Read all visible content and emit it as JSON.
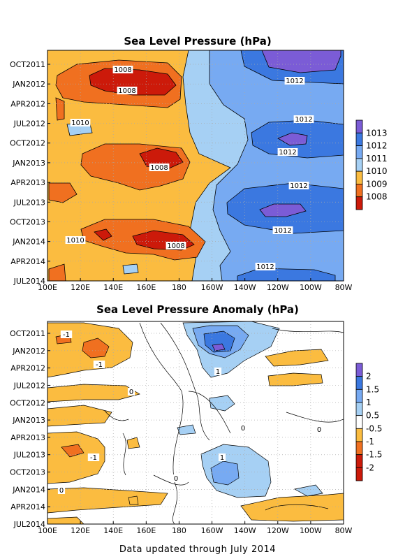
{
  "chart_data": [
    {
      "type": "heatmap",
      "title": "Sea Level Pressure (hPa)",
      "x_ticks": [
        "100E",
        "120E",
        "140E",
        "160E",
        "180",
        "160W",
        "140W",
        "120W",
        "100W",
        "80W"
      ],
      "y_ticks": [
        "OCT2011",
        "JAN2012",
        "APR2012",
        "JUL2012",
        "OCT2012",
        "JAN2013",
        "APR2013",
        "JUL2013",
        "OCT2013",
        "JAN2014",
        "APR2014",
        "JUL2014"
      ],
      "colorbar_levels": [
        "1013",
        "1012",
        "1011",
        "1010",
        "1009",
        "1008"
      ],
      "colorbar_colors": [
        "#7b5cd6",
        "#3b78e0",
        "#77aaf2",
        "#a6d0f4",
        "#fbbc40",
        "#f07020",
        "#cc1a0a"
      ],
      "contour_labels": [
        {
          "text": "1008",
          "x": "140E+",
          "y": "JAN2012-"
        },
        {
          "text": "1008",
          "x": "140E+",
          "y": "JAN2012"
        },
        {
          "text": "1012",
          "x": "120W",
          "y": "JAN2012"
        },
        {
          "text": "1010",
          "x": "120E",
          "y": "JUL2012"
        },
        {
          "text": "1012",
          "x": "120W",
          "y": "JUL2012"
        },
        {
          "text": "1012",
          "x": "120W",
          "y": "OCT2012"
        },
        {
          "text": "1008",
          "x": "160E",
          "y": "JAN2013"
        },
        {
          "text": "1012",
          "x": "120W",
          "y": "APR2013"
        },
        {
          "text": "1012",
          "x": "120W",
          "y": "OCT2013"
        },
        {
          "text": "1010",
          "x": "100E",
          "y": "JAN2014"
        },
        {
          "text": "1008",
          "x": "160E",
          "y": "JAN2014"
        },
        {
          "text": "1012",
          "x": "140W",
          "y": "APR2014"
        }
      ]
    },
    {
      "type": "heatmap",
      "title": "Sea Level Pressure Anomaly (hPa)",
      "x_ticks": [
        "100E",
        "120E",
        "140E",
        "160E",
        "180",
        "160W",
        "140W",
        "120W",
        "100W",
        "80W"
      ],
      "y_ticks": [
        "OCT2011",
        "JAN2012",
        "APR2012",
        "JUL2012",
        "OCT2012",
        "JAN2013",
        "APR2013",
        "JUL2013",
        "OCT2013",
        "JAN2014",
        "APR2014",
        "JUL2014"
      ],
      "colorbar_levels": [
        "2",
        "1.5",
        "1",
        "0.5",
        "-0.5",
        "-1",
        "-1.5",
        "-2"
      ],
      "colorbar_colors": [
        "#7b5cd6",
        "#3b78e0",
        "#77aaf2",
        "#a6d0f4",
        "#ffffff",
        "#fbbc40",
        "#f07020",
        "#cc1a0a",
        "#cc1a0a"
      ],
      "contour_labels": [
        {
          "text": "-1",
          "x": "100E",
          "y": "OCT2011"
        },
        {
          "text": "-1",
          "x": "120E",
          "y": "APR2012"
        },
        {
          "text": "1",
          "x": "160W",
          "y": "APR2012"
        },
        {
          "text": "0",
          "x": "140E",
          "y": "OCT2012"
        },
        {
          "text": "0",
          "x": "160W",
          "y": "APR2013"
        },
        {
          "text": "0",
          "x": "100W",
          "y": "APR2013"
        },
        {
          "text": "-1",
          "x": "120E",
          "y": "JUL2013"
        },
        {
          "text": "1",
          "x": "160W",
          "y": "JUL2013"
        },
        {
          "text": "0",
          "x": "140E",
          "y": "JAN2014"
        },
        {
          "text": "0",
          "x": "100E",
          "y": "APR2014"
        }
      ]
    }
  ],
  "footer": "Data updated through July 2014"
}
